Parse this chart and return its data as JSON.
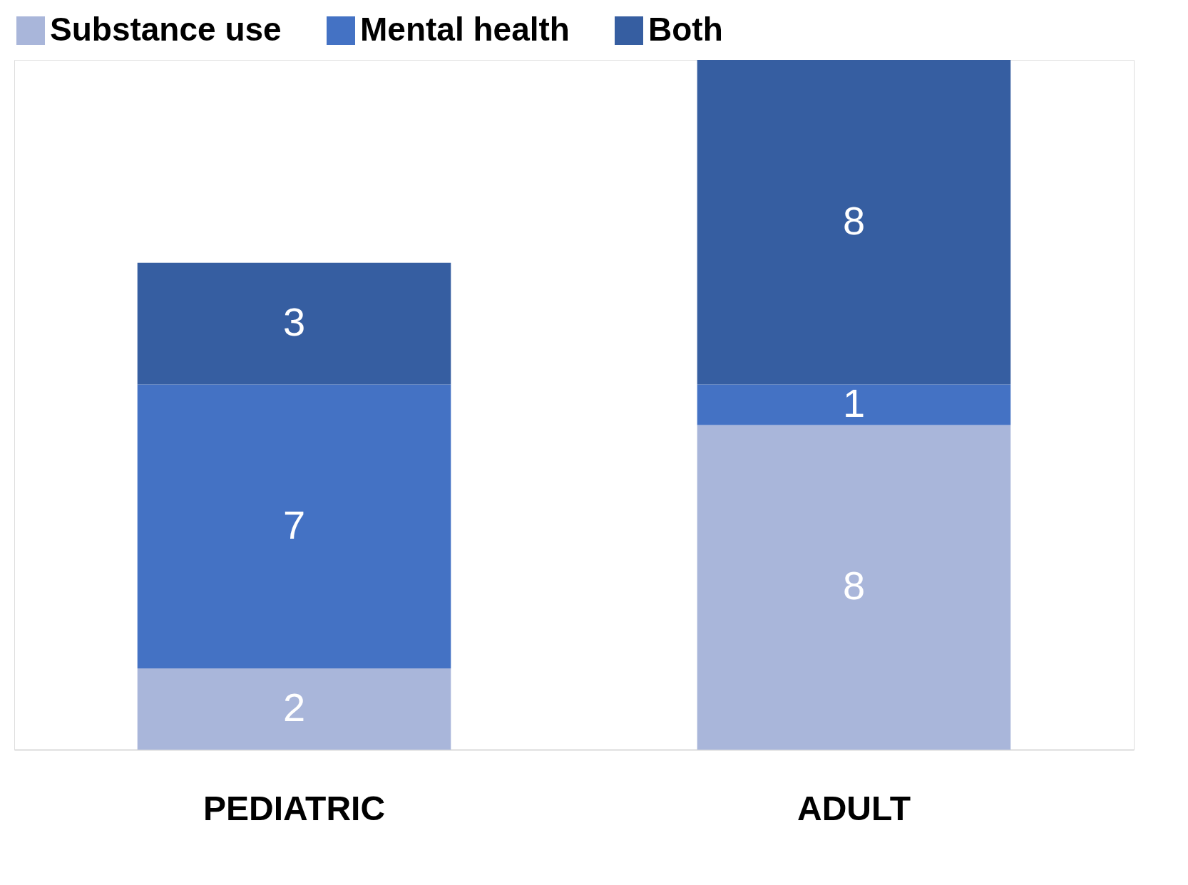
{
  "chart_data": {
    "type": "bar",
    "stacked": true,
    "categories": [
      "PEDIATRIC",
      "ADULT"
    ],
    "series": [
      {
        "name": "Substance use",
        "color": "#a9b6da",
        "values": [
          2,
          8
        ]
      },
      {
        "name": "Mental health",
        "color": "#4472c4",
        "values": [
          7,
          1
        ]
      },
      {
        "name": "Both",
        "color": "#365ea1",
        "values": [
          3,
          8
        ]
      }
    ],
    "data_labels": true,
    "legend": "top",
    "grid": false,
    "tick_labels": "x"
  }
}
